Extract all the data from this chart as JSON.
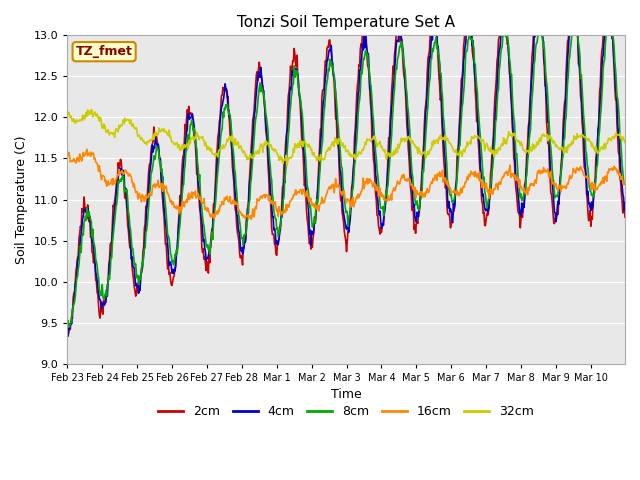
{
  "title": "Tonzi Soil Temperature Set A",
  "xlabel": "Time",
  "ylabel": "Soil Temperature (C)",
  "ylim": [
    9.0,
    13.0
  ],
  "yticks": [
    9.0,
    9.5,
    10.0,
    10.5,
    11.0,
    11.5,
    12.0,
    12.5,
    13.0
  ],
  "xtick_labels": [
    "Feb 23",
    "Feb 24",
    "Feb 25",
    "Feb 26",
    "Feb 27",
    "Feb 28",
    "Mar 1",
    "Mar 2",
    "Mar 3",
    "Mar 4",
    "Mar 5",
    "Mar 6",
    "Mar 7",
    "Mar 8",
    "Mar 9",
    "Mar 10"
  ],
  "series_colors": {
    "2cm": "#cc0000",
    "4cm": "#0000cc",
    "8cm": "#00aa00",
    "16cm": "#ff8800",
    "32cm": "#cccc00"
  },
  "legend_label_text_color": "#880000",
  "legend_label": "TZ_fmet",
  "annotation_box_facecolor": "#ffffcc",
  "annotation_box_edgecolor": "#cc8800",
  "plot_bg_color": "#e8e8e8",
  "fig_bg_color": "#ffffff",
  "series_linewidth": 1.2,
  "grid_color": "#ffffff",
  "n_days": 16,
  "n_per_day": 48
}
